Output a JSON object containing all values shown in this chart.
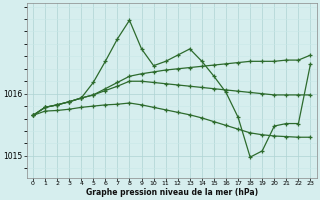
{
  "xlabel": "Graphe pression niveau de la mer (hPa)",
  "x_ticks": [
    0,
    1,
    2,
    3,
    4,
    5,
    6,
    7,
    8,
    9,
    10,
    11,
    12,
    13,
    14,
    15,
    16,
    17,
    18,
    19,
    20,
    21,
    22,
    23
  ],
  "ylim": [
    1014.65,
    1017.45
  ],
  "yticks": [
    1015,
    1016
  ],
  "bg_color": "#d6eeee",
  "line_color": "#2d6b2d",
  "grid_major_color": "#aed4d4",
  "grid_minor_color": "#c8e8e8",
  "s1": [
    1015.65,
    1015.78,
    1015.82,
    1015.87,
    1015.93,
    1016.18,
    1016.52,
    1016.88,
    1017.18,
    1016.72,
    1016.45,
    1016.52,
    1016.62,
    1016.72,
    1016.52,
    1016.28,
    1016.02,
    1015.62,
    1014.98,
    1015.08,
    1015.48,
    1015.52,
    1015.52,
    1016.48
  ],
  "s2": [
    1015.65,
    1015.78,
    1015.82,
    1015.87,
    1015.93,
    1015.98,
    1016.08,
    1016.18,
    1016.28,
    1016.32,
    1016.35,
    1016.38,
    1016.4,
    1016.42,
    1016.44,
    1016.46,
    1016.48,
    1016.5,
    1016.52,
    1016.52,
    1016.52,
    1016.54,
    1016.54,
    1016.62
  ],
  "s3": [
    1015.65,
    1015.78,
    1015.82,
    1015.87,
    1015.93,
    1015.98,
    1016.05,
    1016.12,
    1016.2,
    1016.2,
    1016.18,
    1016.16,
    1016.14,
    1016.12,
    1016.1,
    1016.08,
    1016.06,
    1016.04,
    1016.02,
    1016.0,
    1015.98,
    1015.98,
    1015.98,
    1015.98
  ],
  "s4": [
    1015.65,
    1015.72,
    1015.73,
    1015.75,
    1015.78,
    1015.8,
    1015.82,
    1015.83,
    1015.85,
    1015.82,
    1015.78,
    1015.74,
    1015.7,
    1015.66,
    1015.61,
    1015.55,
    1015.49,
    1015.43,
    1015.37,
    1015.34,
    1015.32,
    1015.31,
    1015.3,
    1015.3
  ]
}
